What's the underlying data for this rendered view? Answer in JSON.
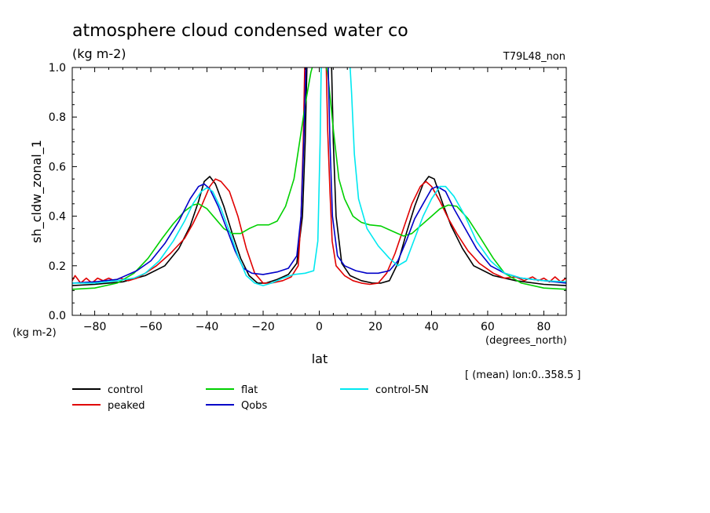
{
  "chart_data": {
    "type": "line",
    "title": "atmosphere cloud condensed water co",
    "units": "(kg m-2)",
    "experiment": "T79L48_non",
    "ylabel": "sh_cldw_zonal_1",
    "yunits": "(kg m-2)",
    "xlabel": "lat",
    "xunits": "(degrees_north)",
    "note": "[ (mean) lon:0..358.5 ]",
    "xlim": [
      -88,
      88
    ],
    "ylim": [
      0.0,
      1.0
    ],
    "xticks": [
      -80,
      -60,
      -40,
      -20,
      0,
      20,
      40,
      60,
      80
    ],
    "xtick_labels": [
      "−80",
      "−60",
      "−40",
      "−20",
      "0",
      "20",
      "40",
      "60",
      "80"
    ],
    "yticks": [
      0.0,
      0.2,
      0.4,
      0.6,
      0.8,
      1.0
    ],
    "ytick_labels": [
      "0.0",
      "0.2",
      "0.4",
      "0.6",
      "0.8",
      "1.0"
    ],
    "grid": false,
    "legend_position": "bottom",
    "series": [
      {
        "name": "control",
        "color": "#000000",
        "points": [
          [
            -88,
            0.12
          ],
          [
            -80,
            0.125
          ],
          [
            -70,
            0.135
          ],
          [
            -62,
            0.16
          ],
          [
            -55,
            0.2
          ],
          [
            -50,
            0.27
          ],
          [
            -46,
            0.36
          ],
          [
            -43,
            0.46
          ],
          [
            -41,
            0.54
          ],
          [
            -39,
            0.56
          ],
          [
            -37,
            0.53
          ],
          [
            -34,
            0.44
          ],
          [
            -31,
            0.33
          ],
          [
            -28,
            0.23
          ],
          [
            -25,
            0.16
          ],
          [
            -22,
            0.13
          ],
          [
            -19,
            0.13
          ],
          [
            -15,
            0.145
          ],
          [
            -11,
            0.165
          ],
          [
            -8,
            0.21
          ],
          [
            -6,
            0.4
          ],
          [
            -5,
            0.7
          ],
          [
            -4.2,
            1.1
          ],
          [
            4.2,
            1.1
          ],
          [
            5,
            0.7
          ],
          [
            6,
            0.4
          ],
          [
            8,
            0.21
          ],
          [
            11,
            0.16
          ],
          [
            15,
            0.14
          ],
          [
            19,
            0.13
          ],
          [
            22,
            0.13
          ],
          [
            25,
            0.14
          ],
          [
            28,
            0.21
          ],
          [
            31,
            0.33
          ],
          [
            34,
            0.44
          ],
          [
            37,
            0.53
          ],
          [
            39,
            0.56
          ],
          [
            41,
            0.55
          ],
          [
            44,
            0.45
          ],
          [
            47,
            0.36
          ],
          [
            51,
            0.27
          ],
          [
            55,
            0.2
          ],
          [
            62,
            0.16
          ],
          [
            70,
            0.14
          ],
          [
            80,
            0.125
          ],
          [
            88,
            0.12
          ]
        ]
      },
      {
        "name": "peaked",
        "color": "#e00000",
        "points": [
          [
            -88,
            0.14
          ],
          [
            -87,
            0.16
          ],
          [
            -85,
            0.13
          ],
          [
            -83,
            0.15
          ],
          [
            -81,
            0.13
          ],
          [
            -79,
            0.15
          ],
          [
            -77,
            0.14
          ],
          [
            -75,
            0.15
          ],
          [
            -73,
            0.14
          ],
          [
            -71,
            0.15
          ],
          [
            -68,
            0.14
          ],
          [
            -65,
            0.15
          ],
          [
            -62,
            0.17
          ],
          [
            -58,
            0.2
          ],
          [
            -53,
            0.25
          ],
          [
            -48,
            0.31
          ],
          [
            -45,
            0.37
          ],
          [
            -42,
            0.44
          ],
          [
            -39,
            0.52
          ],
          [
            -37,
            0.55
          ],
          [
            -35,
            0.54
          ],
          [
            -32,
            0.5
          ],
          [
            -29,
            0.4
          ],
          [
            -26,
            0.27
          ],
          [
            -23,
            0.17
          ],
          [
            -20,
            0.13
          ],
          [
            -17,
            0.13
          ],
          [
            -13,
            0.14
          ],
          [
            -10,
            0.155
          ],
          [
            -7.5,
            0.2
          ],
          [
            -6.5,
            0.4
          ],
          [
            -5.7,
            0.7
          ],
          [
            -5,
            1.1
          ],
          [
            2.3,
            1.1
          ],
          [
            3,
            0.75
          ],
          [
            3.8,
            0.5
          ],
          [
            4.6,
            0.3
          ],
          [
            6,
            0.2
          ],
          [
            9,
            0.16
          ],
          [
            12,
            0.14
          ],
          [
            15,
            0.13
          ],
          [
            18,
            0.125
          ],
          [
            21,
            0.13
          ],
          [
            24,
            0.17
          ],
          [
            27,
            0.25
          ],
          [
            30,
            0.35
          ],
          [
            33,
            0.45
          ],
          [
            36,
            0.52
          ],
          [
            38,
            0.54
          ],
          [
            40,
            0.52
          ],
          [
            43,
            0.46
          ],
          [
            46,
            0.39
          ],
          [
            49,
            0.33
          ],
          [
            53,
            0.26
          ],
          [
            57,
            0.21
          ],
          [
            62,
            0.17
          ],
          [
            66,
            0.15
          ],
          [
            70,
            0.155
          ],
          [
            73,
            0.14
          ],
          [
            76,
            0.155
          ],
          [
            78,
            0.14
          ],
          [
            80,
            0.15
          ],
          [
            82,
            0.135
          ],
          [
            84,
            0.155
          ],
          [
            86,
            0.135
          ],
          [
            88,
            0.15
          ]
        ]
      },
      {
        "name": "flat",
        "color": "#00d000",
        "points": [
          [
            -88,
            0.105
          ],
          [
            -80,
            0.11
          ],
          [
            -72,
            0.13
          ],
          [
            -66,
            0.17
          ],
          [
            -61,
            0.23
          ],
          [
            -56,
            0.31
          ],
          [
            -52,
            0.37
          ],
          [
            -48,
            0.42
          ],
          [
            -45,
            0.445
          ],
          [
            -43,
            0.45
          ],
          [
            -40,
            0.43
          ],
          [
            -37,
            0.39
          ],
          [
            -34,
            0.35
          ],
          [
            -31,
            0.33
          ],
          [
            -28,
            0.33
          ],
          [
            -25,
            0.35
          ],
          [
            -22,
            0.365
          ],
          [
            -18,
            0.365
          ],
          [
            -15,
            0.38
          ],
          [
            -12,
            0.44
          ],
          [
            -9,
            0.55
          ],
          [
            -7,
            0.7
          ],
          [
            -5,
            0.85
          ],
          [
            -3,
            0.98
          ],
          [
            -1,
            1.06
          ],
          [
            1,
            1.06
          ],
          [
            3,
            0.98
          ],
          [
            5,
            0.75
          ],
          [
            7,
            0.55
          ],
          [
            9,
            0.47
          ],
          [
            12,
            0.4
          ],
          [
            15,
            0.375
          ],
          [
            18,
            0.365
          ],
          [
            22,
            0.36
          ],
          [
            26,
            0.34
          ],
          [
            30,
            0.32
          ],
          [
            33,
            0.33
          ],
          [
            36,
            0.36
          ],
          [
            40,
            0.4
          ],
          [
            43,
            0.43
          ],
          [
            46,
            0.445
          ],
          [
            49,
            0.44
          ],
          [
            53,
            0.39
          ],
          [
            57,
            0.32
          ],
          [
            62,
            0.23
          ],
          [
            66,
            0.17
          ],
          [
            72,
            0.13
          ],
          [
            80,
            0.11
          ],
          [
            88,
            0.105
          ]
        ]
      },
      {
        "name": "Qobs",
        "color": "#0000c8",
        "points": [
          [
            -88,
            0.13
          ],
          [
            -80,
            0.135
          ],
          [
            -72,
            0.145
          ],
          [
            -65,
            0.18
          ],
          [
            -60,
            0.22
          ],
          [
            -55,
            0.29
          ],
          [
            -50,
            0.38
          ],
          [
            -46,
            0.47
          ],
          [
            -43,
            0.52
          ],
          [
            -41,
            0.53
          ],
          [
            -39,
            0.51
          ],
          [
            -36,
            0.44
          ],
          [
            -33,
            0.35
          ],
          [
            -30,
            0.26
          ],
          [
            -27,
            0.19
          ],
          [
            -24,
            0.17
          ],
          [
            -20,
            0.165
          ],
          [
            -15,
            0.175
          ],
          [
            -11,
            0.19
          ],
          [
            -8,
            0.24
          ],
          [
            -6.5,
            0.4
          ],
          [
            -5.5,
            0.7
          ],
          [
            -4.5,
            1.1
          ],
          [
            3,
            1.1
          ],
          [
            3.8,
            0.7
          ],
          [
            4.7,
            0.4
          ],
          [
            6.5,
            0.24
          ],
          [
            9,
            0.2
          ],
          [
            13,
            0.18
          ],
          [
            17,
            0.17
          ],
          [
            21,
            0.17
          ],
          [
            25,
            0.18
          ],
          [
            28,
            0.22
          ],
          [
            31,
            0.3
          ],
          [
            34,
            0.39
          ],
          [
            37,
            0.45
          ],
          [
            40,
            0.51
          ],
          [
            42,
            0.52
          ],
          [
            45,
            0.5
          ],
          [
            48,
            0.43
          ],
          [
            52,
            0.35
          ],
          [
            56,
            0.27
          ],
          [
            61,
            0.2
          ],
          [
            66,
            0.17
          ],
          [
            72,
            0.15
          ],
          [
            80,
            0.14
          ],
          [
            88,
            0.13
          ]
        ]
      },
      {
        "name": "control-5N",
        "color": "#00e8f0",
        "points": [
          [
            -88,
            0.13
          ],
          [
            -80,
            0.13
          ],
          [
            -72,
            0.14
          ],
          [
            -66,
            0.15
          ],
          [
            -62,
            0.17
          ],
          [
            -57,
            0.22
          ],
          [
            -52,
            0.3
          ],
          [
            -48,
            0.38
          ],
          [
            -45,
            0.45
          ],
          [
            -42,
            0.5
          ],
          [
            -40,
            0.515
          ],
          [
            -38,
            0.5
          ],
          [
            -35,
            0.43
          ],
          [
            -32,
            0.34
          ],
          [
            -29,
            0.24
          ],
          [
            -26,
            0.16
          ],
          [
            -23,
            0.13
          ],
          [
            -20,
            0.12
          ],
          [
            -17,
            0.13
          ],
          [
            -13,
            0.15
          ],
          [
            -9,
            0.165
          ],
          [
            -5,
            0.17
          ],
          [
            -2,
            0.18
          ],
          [
            -0.5,
            0.3
          ],
          [
            0.3,
            0.7
          ],
          [
            0.8,
            1.1
          ],
          [
            10.5,
            1.1
          ],
          [
            11.5,
            0.9
          ],
          [
            12.5,
            0.65
          ],
          [
            14,
            0.47
          ],
          [
            17,
            0.35
          ],
          [
            21,
            0.28
          ],
          [
            25,
            0.23
          ],
          [
            28,
            0.2
          ],
          [
            31,
            0.22
          ],
          [
            34,
            0.31
          ],
          [
            37,
            0.4
          ],
          [
            40,
            0.47
          ],
          [
            43,
            0.52
          ],
          [
            45,
            0.52
          ],
          [
            48,
            0.48
          ],
          [
            52,
            0.4
          ],
          [
            56,
            0.3
          ],
          [
            61,
            0.22
          ],
          [
            66,
            0.17
          ],
          [
            72,
            0.15
          ],
          [
            80,
            0.14
          ],
          [
            88,
            0.135
          ]
        ]
      }
    ]
  }
}
